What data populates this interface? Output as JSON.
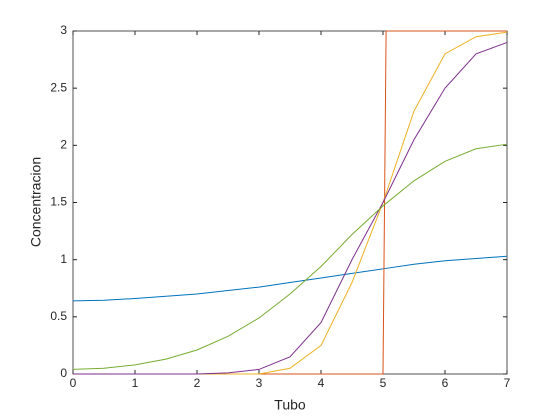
{
  "chart_data": {
    "type": "line",
    "xlabel": "Tubo",
    "ylabel": "Concentracion",
    "x": [
      0,
      0.5,
      1,
      1.5,
      2,
      2.5,
      3,
      3.5,
      4,
      4.5,
      5,
      5.5,
      6,
      6.5,
      7
    ],
    "series": [
      {
        "color": "#0072bd",
        "values": [
          0.64,
          0.645,
          0.66,
          0.68,
          0.7,
          0.73,
          0.76,
          0.8,
          0.84,
          0.88,
          0.92,
          0.96,
          0.99,
          1.01,
          1.03
        ]
      },
      {
        "color": "#d95319",
        "x": [
          0,
          5,
          5.05,
          7
        ],
        "values": [
          0,
          0,
          3,
          3
        ]
      },
      {
        "color": "#edb120",
        "values": [
          0,
          0,
          0,
          0,
          0,
          0,
          0,
          0.05,
          0.25,
          0.8,
          1.5,
          2.3,
          2.8,
          2.95,
          2.99
        ]
      },
      {
        "color": "#7e2f8e",
        "values": [
          0,
          0,
          0,
          0,
          0,
          0.01,
          0.04,
          0.15,
          0.45,
          1.0,
          1.5,
          2.05,
          2.5,
          2.8,
          2.9
        ]
      },
      {
        "color": "#77ac30",
        "values": [
          0.04,
          0.05,
          0.08,
          0.13,
          0.21,
          0.33,
          0.49,
          0.7,
          0.94,
          1.22,
          1.47,
          1.69,
          1.86,
          1.97,
          2.01
        ]
      }
    ],
    "xlim": [
      0,
      7
    ],
    "ylim": [
      0,
      3
    ],
    "xticks": [
      0,
      1,
      2,
      3,
      4,
      5,
      6,
      7
    ],
    "yticks": [
      0,
      0.5,
      1,
      1.5,
      2,
      2.5,
      3
    ],
    "grid": false
  }
}
